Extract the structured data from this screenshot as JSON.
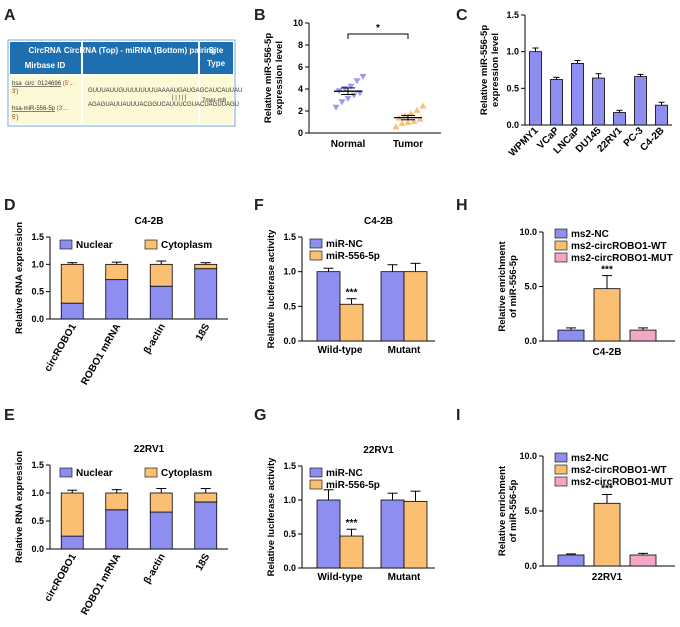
{
  "colors": {
    "blue": "#8e8ef0",
    "orange": "#fbbf73",
    "pink": "#f3a6c6",
    "normal_marker": "#9b9bf3",
    "tumor_marker": "#f6c27a",
    "table_header": "#1e6fb0",
    "table_cell": "#fbf9d6"
  },
  "panel_labels": [
    "A",
    "B",
    "C",
    "D",
    "E",
    "F",
    "G",
    "H",
    "I"
  ],
  "panelA": {
    "headers": [
      "CircRNA",
      "Mirbase ID",
      "CircRNA (Top) - miRNA (Bottom) pairing",
      "Site Type"
    ],
    "row1": [
      "hsa_circ_0124696",
      "(5'...",
      "3')"
    ],
    "row2": [
      "hsa-miR-556-5p",
      "(3'...",
      "5')"
    ],
    "seq_top": "GUUUAUUGUUUUUUUUAAAAUGAUGAGCAUCAUUAU",
    "seq_mid": "| | | | |",
    "seq_bot": "AGAGUAUUAUUUACGGUCAUUUCGUACUAGUUAGU",
    "site_type": "7mer-m8"
  },
  "chart_data": [
    {
      "id": "B",
      "type": "scatter",
      "ylabel": "Relative miR-556-5p expression level",
      "categories": [
        "Normal",
        "Tumor"
      ],
      "ylim": [
        0,
        10
      ],
      "yticks": [
        0,
        2,
        4,
        6,
        8,
        10
      ],
      "series": [
        {
          "name": "Normal",
          "values": [
            2.3,
            2.8,
            3.1,
            3.4,
            3.6,
            3.8,
            4.0,
            4.2,
            4.7,
            5.1
          ],
          "mean": 3.8,
          "sem": 0.3
        },
        {
          "name": "Tumor",
          "values": [
            0.6,
            0.9,
            1.0,
            1.1,
            1.3,
            1.4,
            1.6,
            1.8,
            2.1,
            2.5
          ],
          "mean": 1.4,
          "sem": 0.2
        }
      ],
      "significance": "*"
    },
    {
      "id": "C",
      "type": "bar",
      "ylabel": "Relative miR-556-5p expression level",
      "categories": [
        "WPMY1",
        "VCaP",
        "LNCaP",
        "DU145",
        "22RV1",
        "PC-3",
        "C4-2B"
      ],
      "values": [
        1.0,
        0.62,
        0.84,
        0.64,
        0.17,
        0.66,
        0.27
      ],
      "errors": [
        0.05,
        0.03,
        0.04,
        0.06,
        0.03,
        0.03,
        0.04
      ],
      "ylim": [
        0,
        1.5
      ],
      "yticks": [
        "0.0",
        "0.5",
        "1.0",
        "1.5"
      ]
    },
    {
      "id": "D",
      "type": "bar",
      "stacked": true,
      "title": "C4-2B",
      "ylabel": "Relative RNA expression",
      "categories": [
        "circROBO1",
        "ROBO1 mRNA",
        "β-actin",
        "18S"
      ],
      "series": [
        {
          "name": "Nuclear",
          "values": [
            0.29,
            0.72,
            0.6,
            0.92
          ],
          "errors": [
            0.03,
            0.03,
            0.06,
            0.03
          ]
        },
        {
          "name": "Cytoplasm",
          "values": [
            0.71,
            0.28,
            0.4,
            0.08
          ],
          "errors": [
            0.03,
            0.04,
            0.06,
            0.03
          ]
        }
      ],
      "ylim": [
        0,
        1.5
      ],
      "yticks": [
        "0.0",
        "0.5",
        "1.0",
        "1.5"
      ]
    },
    {
      "id": "E",
      "type": "bar",
      "stacked": true,
      "title": "22RV1",
      "ylabel": "Relative RNA expression",
      "categories": [
        "circROBO1",
        "ROBO1 mRNA",
        "β-actin",
        "18S"
      ],
      "series": [
        {
          "name": "Nuclear",
          "values": [
            0.23,
            0.7,
            0.66,
            0.84
          ],
          "errors": [
            0.05,
            0.05,
            0.07,
            0.06
          ]
        },
        {
          "name": "Cytoplasm",
          "values": [
            0.77,
            0.3,
            0.34,
            0.16
          ],
          "errors": [
            0.05,
            0.06,
            0.08,
            0.08
          ]
        }
      ],
      "ylim": [
        0,
        1.5
      ],
      "yticks": [
        "0.0",
        "0.5",
        "1.0",
        "1.5"
      ]
    },
    {
      "id": "F",
      "type": "bar",
      "title": "C4-2B",
      "ylabel": "Relative luciferase activity",
      "categories": [
        "Wild-type",
        "Mutant"
      ],
      "series": [
        {
          "name": "miR-NC",
          "values": [
            1.0,
            1.0
          ],
          "errors": [
            0.05,
            0.1
          ]
        },
        {
          "name": "miR-556-5p",
          "values": [
            0.53,
            1.0
          ],
          "errors": [
            0.08,
            0.12
          ]
        }
      ],
      "ylim": [
        0,
        1.5
      ],
      "yticks": [
        "0.0",
        "0.5",
        "1.0",
        "1.5"
      ],
      "significance": "***"
    },
    {
      "id": "G",
      "type": "bar",
      "title": "22RV1",
      "ylabel": "Relative luciferase activity",
      "categories": [
        "Wild-type",
        "Mutant"
      ],
      "series": [
        {
          "name": "miR-NC",
          "values": [
            1.0,
            1.0
          ],
          "errors": [
            0.15,
            0.1
          ]
        },
        {
          "name": "miR-556-5p",
          "values": [
            0.47,
            0.98
          ],
          "errors": [
            0.1,
            0.15
          ]
        }
      ],
      "ylim": [
        0,
        1.5
      ],
      "yticks": [
        "0.0",
        "0.5",
        "1.0",
        "1.5"
      ],
      "significance": "***"
    },
    {
      "id": "H",
      "type": "bar",
      "title": "C4-2B",
      "ylabel": "Relative enrichment of miR-556-5p",
      "categories": [
        "C4-2B"
      ],
      "series": [
        {
          "name": "ms2-NC",
          "values": [
            1.0
          ],
          "errors": [
            0.2
          ]
        },
        {
          "name": "ms2-circROBO1-WT",
          "values": [
            4.8
          ],
          "errors": [
            1.2
          ]
        },
        {
          "name": "ms2-circROBO1-MUT",
          "values": [
            1.0
          ],
          "errors": [
            0.2
          ]
        }
      ],
      "ylim": [
        0,
        10
      ],
      "yticks": [
        "0.0",
        "5.0",
        "10.0"
      ],
      "significance": "***"
    },
    {
      "id": "I",
      "type": "bar",
      "title": "22RV1",
      "ylabel": "Relative enrichment of miR-556-5p",
      "categories": [
        "22RV1"
      ],
      "series": [
        {
          "name": "ms2-NC",
          "values": [
            1.0
          ],
          "errors": [
            0.1
          ]
        },
        {
          "name": "ms2-circROBO1-WT",
          "values": [
            5.7
          ],
          "errors": [
            0.8
          ]
        },
        {
          "name": "ms2-circROBO1-MUT",
          "values": [
            1.0
          ],
          "errors": [
            0.15
          ]
        }
      ],
      "ylim": [
        0,
        10
      ],
      "yticks": [
        "0.0",
        "5.0",
        "10.0"
      ],
      "significance": "***"
    }
  ]
}
